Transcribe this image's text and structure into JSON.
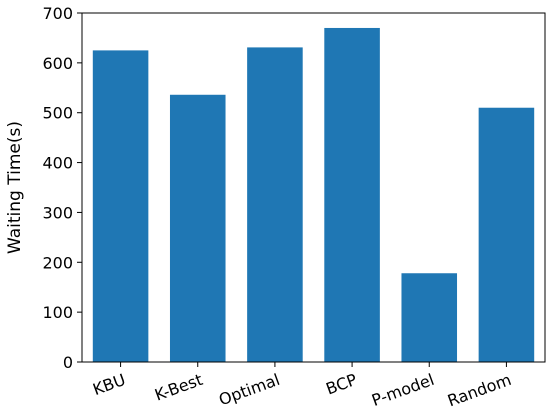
{
  "chart_data": {
    "type": "bar",
    "title": "",
    "xlabel": "",
    "ylabel": "Waiting Time(s)",
    "categories": [
      "KBU",
      "K-Best",
      "Optimal",
      "BCP",
      "P-model",
      "Random"
    ],
    "values": [
      625,
      536,
      631,
      670,
      178,
      510
    ],
    "ylim": [
      0,
      700
    ],
    "yticks": [
      0,
      100,
      200,
      300,
      400,
      500,
      600,
      700
    ],
    "bar_color": "#1f77b4",
    "grid": false,
    "legend": "none",
    "xtick_rotation_deg": -20
  }
}
